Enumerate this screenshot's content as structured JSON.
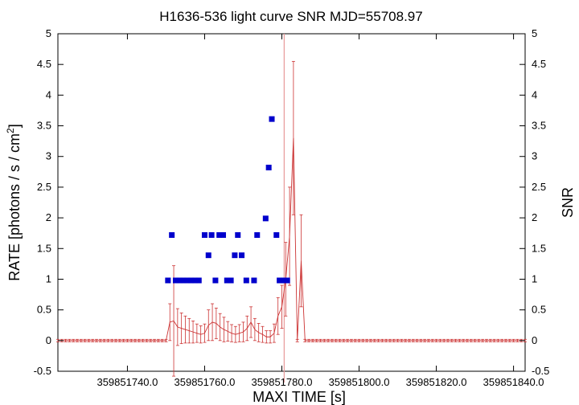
{
  "chart_data": {
    "type": "scatter",
    "title": "H1636-536 light curve  SNR MJD=55708.97",
    "xlabel": "MAXI TIME [s]",
    "ylabel_left": "RATE [photons / s / cm",
    "ylabel_left_sup": "2",
    "ylabel_left_end": "]",
    "ylabel_right": "SNR",
    "xlim": [
      359851722,
      359851843
    ],
    "ylim": [
      -0.5,
      5
    ],
    "xticks": [
      359851740,
      359851760,
      359851780,
      359851800,
      359851820,
      359851840
    ],
    "xtick_labels": [
      "359851740.0",
      "359851760.0",
      "359851780.0",
      "359851800.0",
      "359851820.0",
      "359851840.0"
    ],
    "yticks": [
      -0.5,
      0,
      0.5,
      1,
      1.5,
      2,
      2.5,
      3,
      3.5,
      4,
      4.5,
      5
    ],
    "ytick_labels": [
      "-0.5",
      "0",
      "0.5",
      "1",
      "1.5",
      "2",
      "2.5",
      "3",
      "3.5",
      "4",
      "4.5",
      "5"
    ],
    "marker_time": 359851780.6,
    "colors": {
      "rate": "#cc3333",
      "snr": "#0000cc",
      "marker": "#e89a9a",
      "axis": "#000000"
    },
    "rate_series": {
      "name": "RATE",
      "x": [
        359851722,
        359851723,
        359851724,
        359851725,
        359851726,
        359851727,
        359851728,
        359851729,
        359851730,
        359851731,
        359851732,
        359851733,
        359851734,
        359851735,
        359851736,
        359851737,
        359851738,
        359851739,
        359851740,
        359851741,
        359851742,
        359851743,
        359851744,
        359851745,
        359851746,
        359851747,
        359851748,
        359851749,
        359851750,
        359851751,
        359851752,
        359851753,
        359851754,
        359851755,
        359851756,
        359851757,
        359851758,
        359851759,
        359851760,
        359851761,
        359851762,
        359851763,
        359851764,
        359851765,
        359851766,
        359851767,
        359851768,
        359851769,
        359851770,
        359851771,
        359851772,
        359851773,
        359851774,
        359851775,
        359851776,
        359851777,
        359851778,
        359851779,
        359851780,
        359851781,
        359851782,
        359851783,
        359851784,
        359851785,
        359851786,
        359851787,
        359851788,
        359851789,
        359851790,
        359851791,
        359851792,
        359851793,
        359851794,
        359851795,
        359851796,
        359851797,
        359851798,
        359851799,
        359851800,
        359851801,
        359851802,
        359851803,
        359851804,
        359851805,
        359851806,
        359851807,
        359851808,
        359851809,
        359851810,
        359851811,
        359851812,
        359851813,
        359851814,
        359851815,
        359851816,
        359851817,
        359851818,
        359851819,
        359851820,
        359851821,
        359851822,
        359851823,
        359851824,
        359851825,
        359851826,
        359851827,
        359851828,
        359851829,
        359851830,
        359851831,
        359851832,
        359851833,
        359851834,
        359851835,
        359851836,
        359851837,
        359851838,
        359851839,
        359851840,
        359851841,
        359851842,
        359851843
      ],
      "y": [
        0,
        0,
        0,
        0,
        0,
        0,
        0,
        0,
        0,
        0,
        0,
        0,
        0,
        0,
        0,
        0,
        0,
        0,
        0,
        0,
        0,
        0,
        0,
        0,
        0,
        0,
        0,
        0,
        0,
        0.3,
        0.32,
        0.22,
        0.2,
        0.18,
        0.16,
        0.14,
        0.12,
        0.1,
        0.12,
        0.25,
        0.3,
        0.28,
        0.22,
        0.18,
        0.15,
        0.12,
        0.1,
        0.12,
        0.14,
        0.2,
        0.3,
        0.18,
        0.13,
        0.1,
        0.06,
        0.06,
        0.12,
        0.4,
        0.55,
        1.0,
        1.7,
        3.3,
        0,
        1.3,
        0,
        0,
        0,
        0,
        0,
        0,
        0,
        0,
        0,
        0,
        0,
        0,
        0,
        0,
        0,
        0,
        0,
        0,
        0,
        0,
        0,
        0,
        0,
        0,
        0,
        0,
        0,
        0,
        0,
        0,
        0,
        0,
        0,
        0,
        0,
        0,
        0,
        0,
        0,
        0,
        0,
        0,
        0,
        0,
        0,
        0,
        0,
        0,
        0,
        0,
        0,
        0,
        0,
        0,
        0,
        0,
        0,
        0
      ],
      "err": [
        0.02,
        0.02,
        0.02,
        0.02,
        0.02,
        0.02,
        0.02,
        0.02,
        0.02,
        0.02,
        0.02,
        0.02,
        0.02,
        0.02,
        0.02,
        0.02,
        0.02,
        0.02,
        0.02,
        0.02,
        0.02,
        0.02,
        0.02,
        0.02,
        0.02,
        0.02,
        0.02,
        0.02,
        0.02,
        0.3,
        0.9,
        0.3,
        0.25,
        0.22,
        0.2,
        0.18,
        0.15,
        0.14,
        0.15,
        0.25,
        0.3,
        0.25,
        0.22,
        0.2,
        0.16,
        0.14,
        0.13,
        0.14,
        0.16,
        0.2,
        0.25,
        0.18,
        0.15,
        0.13,
        0.1,
        0.1,
        0.15,
        0.3,
        0.35,
        0.6,
        0.8,
        1.25,
        0.02,
        0.75,
        0.02,
        0.02,
        0.02,
        0.02,
        0.02,
        0.02,
        0.02,
        0.02,
        0.02,
        0.02,
        0.02,
        0.02,
        0.02,
        0.02,
        0.02,
        0.02,
        0.02,
        0.02,
        0.02,
        0.02,
        0.02,
        0.02,
        0.02,
        0.02,
        0.02,
        0.02,
        0.02,
        0.02,
        0.02,
        0.02,
        0.02,
        0.02,
        0.02,
        0.02,
        0.02,
        0.02,
        0.02,
        0.02,
        0.02,
        0.02,
        0.02,
        0.02,
        0.02,
        0.02,
        0.02,
        0.02,
        0.02,
        0.02,
        0.02,
        0.02,
        0.02,
        0.02,
        0.02,
        0.02,
        0.02,
        0.02,
        0.02,
        0.02
      ]
    },
    "snr_series": {
      "name": "SNR",
      "x": [
        359851750.5,
        359851751.5,
        359851752.5,
        359851753.5,
        359851754.5,
        359851755.5,
        359851756.5,
        359851757.5,
        359851758.5,
        359851760,
        359851761,
        359851761.8,
        359851762.8,
        359851763.8,
        359851764.8,
        359851765.8,
        359851766.8,
        359851767.8,
        359851768.6,
        359851769.6,
        359851770.8,
        359851772.8,
        359851773.6,
        359851775.8,
        359851776.6,
        359851777.4,
        359851778.6,
        359851779.4,
        359851780.4,
        359851781.4
      ],
      "y": [
        0.98,
        1.72,
        0.98,
        0.98,
        0.98,
        0.98,
        0.98,
        0.98,
        0.98,
        1.72,
        1.39,
        1.72,
        0.98,
        1.72,
        1.72,
        0.98,
        0.98,
        1.39,
        1.72,
        1.39,
        0.98,
        0.98,
        1.72,
        1.99,
        2.82,
        3.61,
        1.72,
        0.98,
        0.98,
        0.98
      ]
    }
  }
}
